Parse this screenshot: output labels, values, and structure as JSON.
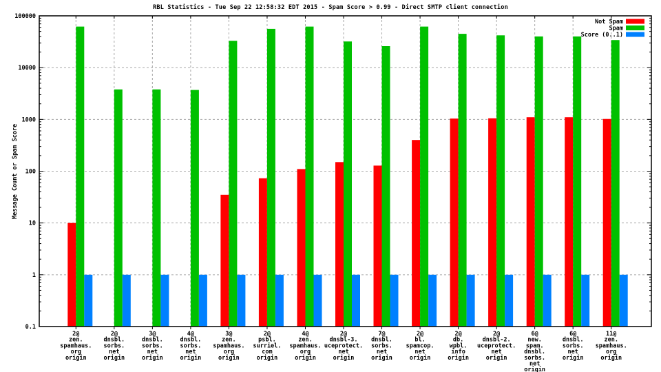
{
  "chart_data": {
    "type": "bar",
    "title": "RBL Statistics - Tue Sep 22 12:58:32 EDT 2015 - Spam Score > 0.99 - Direct SMTP client connection",
    "ylabel": "Message Count or Spam Score",
    "yscale": "log",
    "ylim": [
      0.1,
      100000
    ],
    "ytick_labels": [
      "100000",
      "10000",
      "1000",
      "100",
      "10",
      "1",
      "0.1"
    ],
    "grid": {
      "horizontal": true,
      "vertical": true,
      "style": "dashed",
      "color": "#a8a8a8"
    },
    "legend_position": "top-right-inside",
    "categories": [
      [
        "2@",
        "zen.",
        "spamhaus.",
        "org",
        "origin"
      ],
      [
        "2@",
        "dnsbl.",
        "sorbs.",
        "net",
        "origin"
      ],
      [
        "3@",
        "dnsbl.",
        "sorbs.",
        "net",
        "origin"
      ],
      [
        "4@",
        "dnsbl.",
        "sorbs.",
        "net",
        "origin"
      ],
      [
        "3@",
        "zen.",
        "spamhaus.",
        "org",
        "origin"
      ],
      [
        "2@",
        "psbl.",
        "surriel.",
        "com",
        "origin"
      ],
      [
        "4@",
        "zen.",
        "spamhaus.",
        "org",
        "origin"
      ],
      [
        "2@",
        "dnsbl-3.",
        "uceprotect.",
        "net",
        "origin"
      ],
      [
        "7@",
        "dnsbl.",
        "sorbs.",
        "net",
        "origin"
      ],
      [
        "2@",
        "bl.",
        "spamcop.",
        "net",
        "origin"
      ],
      [
        "2@",
        "db.",
        "wpbl.",
        "info",
        "origin"
      ],
      [
        "2@",
        "dnsbl-2.",
        "uceprotect.",
        "net",
        "origin"
      ],
      [
        "6@",
        "new.",
        "spam.",
        "dnsbl.",
        "sorbs.",
        "net",
        "origin"
      ],
      [
        "6@",
        "dnsbl.",
        "sorbs.",
        "net",
        "origin"
      ],
      [
        "11@",
        "zen.",
        "spamhaus.",
        "org",
        "origin"
      ]
    ],
    "series": [
      {
        "name": "Not Spam",
        "color": "#ff0000",
        "values": [
          10,
          0,
          0,
          0,
          35,
          73,
          110,
          150,
          128,
          400,
          1040,
          1050,
          1100,
          1100,
          1020
        ]
      },
      {
        "name": "Spam",
        "color": "#00c000",
        "values": [
          62000,
          3800,
          3800,
          3700,
          33000,
          56000,
          62000,
          32000,
          26000,
          62000,
          45000,
          42000,
          40000,
          40000,
          34000
        ]
      },
      {
        "name": "Score (0..1)",
        "color": "#0080ff",
        "values": [
          1,
          1,
          1,
          1,
          1,
          1,
          1,
          1,
          1,
          1,
          1,
          1,
          1,
          1,
          1
        ]
      }
    ],
    "axis_color": "#000000"
  }
}
